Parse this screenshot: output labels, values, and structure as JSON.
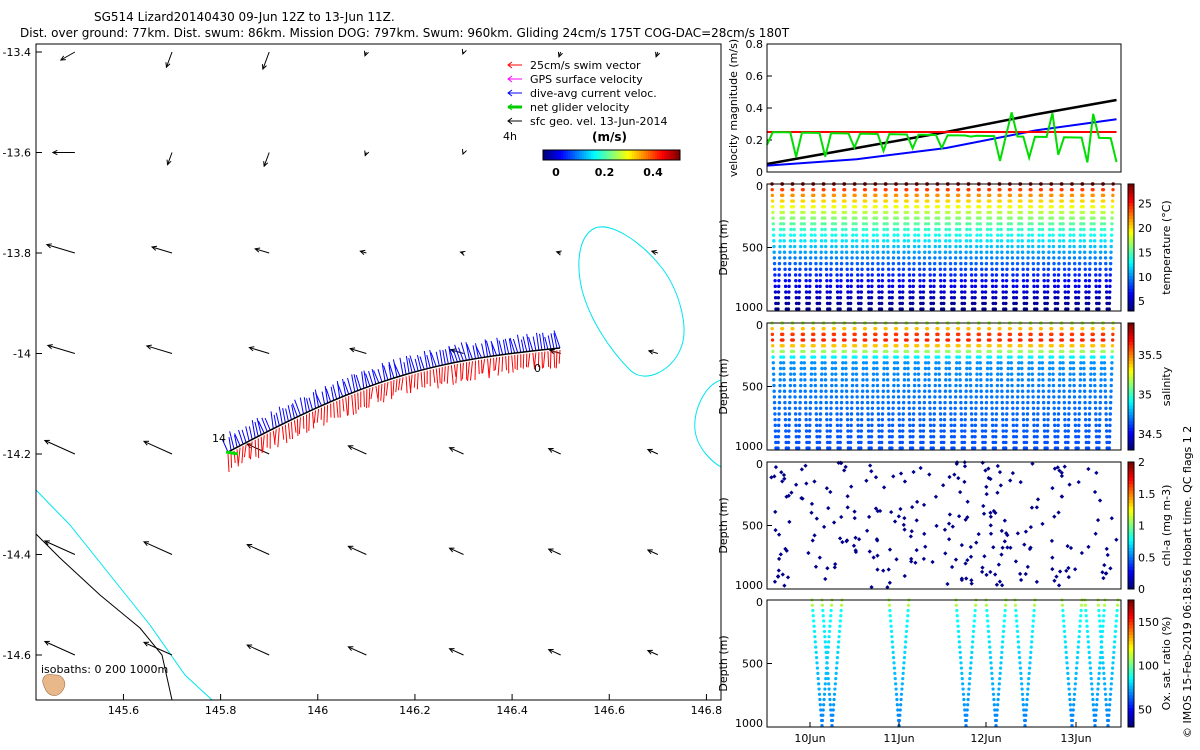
{
  "header": {
    "line1": "SG514 Lizard20140430 09-Jun 12Z to 13-Jun 11Z.",
    "line2": "Dist. over ground: 77km. Dist. swum: 86km. Mission DOG: 797km. Swum: 960km. Gliding 24cm/s 175T COG-DAC=28cm/s 180T"
  },
  "map": {
    "x_ticks": [
      "145.6",
      "145.8",
      "146",
      "146.2",
      "146.4",
      "146.6",
      "146.8"
    ],
    "y_ticks": [
      "-13.4",
      "-13.6",
      "-13.8",
      "-14",
      "-14.2",
      "-14.4",
      "-14.6"
    ],
    "track_start_label": "0",
    "track_end_label": "14",
    "legend_4h_label": "4h",
    "isobaths_label": "isobaths: 0   200  1000m",
    "legend": [
      {
        "label": "25cm/s swim vector",
        "color": "#ff0000"
      },
      {
        "label": "GPS surface velocity",
        "color": "#ff00ff"
      },
      {
        "label": "dive-avg current veloc.",
        "color": "#0000ff"
      },
      {
        "label": "net glider velocity",
        "color": "#00cc00"
      },
      {
        "label": "sfc geo. vel. 13-Jun-2014",
        "color": "#000000"
      }
    ],
    "colorbar": {
      "units": "(m/s)",
      "ticks": [
        "0",
        "0.2",
        "0.4"
      ]
    }
  },
  "panels": {
    "time_ticks": [
      "10Jun",
      "11Jun",
      "12Jun",
      "13Jun"
    ],
    "depth_ticks": [
      "0",
      "500",
      "1000"
    ],
    "velocity": {
      "ylabel": "velocity magnitude (m/s)",
      "yticks": [
        "0",
        "0.2",
        "0.4",
        "0.6",
        "0.8"
      ]
    },
    "temperature": {
      "label": "temperature (°C)",
      "cticks": [
        "5",
        "10",
        "15",
        "20",
        "25"
      ]
    },
    "salinity": {
      "label": "salinity",
      "cticks": [
        "34.5",
        "35",
        "35.5"
      ]
    },
    "chla": {
      "label": "chl-a (mg m-3)",
      "cticks": [
        "0",
        "0.5",
        "1",
        "1.5",
        "2"
      ]
    },
    "oxygen": {
      "label": "Ox. sat. ratio (%)",
      "cticks": [
        "50",
        "100",
        "150"
      ]
    },
    "depth_label": "Depth (m)"
  },
  "side_note": "© IMOS 15-Feb-2019 06:18:56 Hobart time. QC flags 1  2",
  "chart_data": [
    {
      "type": "line",
      "title": "velocity magnitude",
      "ylabel": "velocity magnitude (m/s)",
      "ylim": [
        0,
        0.8
      ],
      "x_days": [
        0,
        1,
        2,
        3,
        3.9
      ],
      "series": [
        {
          "name": "sfc geo. vel.",
          "color": "#000000",
          "values": [
            0.05,
            0.15,
            0.25,
            0.36,
            0.45
          ]
        },
        {
          "name": "dive-avg current",
          "color": "#0000ff",
          "values": [
            0.04,
            0.08,
            0.15,
            0.26,
            0.33
          ]
        },
        {
          "name": "swim",
          "color": "#ff0000",
          "values": [
            0.25,
            0.25,
            0.25,
            0.25,
            0.25
          ]
        },
        {
          "name": "net glider",
          "color": "#00dd00",
          "values": [
            0.24,
            0.26,
            0.25,
            0.22,
            0.2
          ]
        }
      ]
    },
    {
      "type": "scatter",
      "title": "temperature section",
      "ylabel": "Depth (m)",
      "ylim": [
        1000,
        0
      ],
      "dives": 33,
      "surface_value": 28,
      "deep_value": 4,
      "clim": [
        3,
        29
      ]
    },
    {
      "type": "scatter",
      "title": "salinity section",
      "ylabel": "Depth (m)",
      "ylim": [
        1000,
        0
      ],
      "dives": 33,
      "clim": [
        34.3,
        35.9
      ]
    },
    {
      "type": "scatter",
      "title": "chl-a section",
      "ylabel": "Depth (m)",
      "ylim": [
        1000,
        0
      ],
      "clim": [
        0,
        2
      ],
      "typical_value": 0.05
    },
    {
      "type": "scatter",
      "title": "oxygen saturation section",
      "ylabel": "Depth (m)",
      "ylim": [
        1000,
        0
      ],
      "clim": [
        30,
        175
      ],
      "surface_value": 105,
      "deep_value": 55
    }
  ]
}
